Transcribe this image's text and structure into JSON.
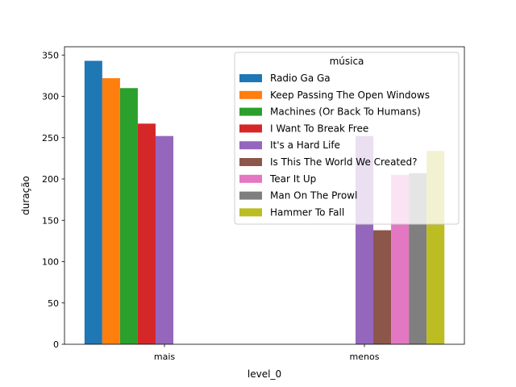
{
  "chart_data": {
    "type": "bar",
    "xlabel": "level_0",
    "ylabel": "duração",
    "categories": [
      "mais",
      "menos"
    ],
    "ylim": [
      0,
      360
    ],
    "yticks": [
      0,
      50,
      100,
      150,
      200,
      250,
      300,
      350
    ],
    "legend": {
      "title": "música",
      "placement": "top-right",
      "entries": [
        "Radio Ga Ga",
        "Keep Passing The Open Windows",
        "Machines (Or Back To Humans)",
        "I Want To Break Free",
        "It's a Hard Life",
        "Is This The World We Created?",
        "Tear It Up",
        "Man On The Prowl",
        "Hammer To Fall"
      ]
    },
    "series": [
      {
        "name": "Radio Ga Ga",
        "color": "#1f77b4",
        "values": [
          343,
          null
        ]
      },
      {
        "name": "Keep Passing The Open Windows",
        "color": "#ff7f0e",
        "values": [
          322,
          null
        ]
      },
      {
        "name": "Machines (Or Back To Humans)",
        "color": "#2ca02c",
        "values": [
          310,
          null
        ]
      },
      {
        "name": "I Want To Break Free",
        "color": "#d62728",
        "values": [
          267,
          null
        ]
      },
      {
        "name": "It's a Hard Life",
        "color": "#9467bd",
        "values": [
          252,
          252
        ]
      },
      {
        "name": "Is This The World We Created?",
        "color": "#8c564b",
        "values": [
          null,
          138
        ]
      },
      {
        "name": "Tear It Up",
        "color": "#e377c2",
        "values": [
          null,
          205
        ]
      },
      {
        "name": "Man On The Prowl",
        "color": "#7f7f7f",
        "values": [
          null,
          207
        ]
      },
      {
        "name": "Hammer To Fall",
        "color": "#bcbd22",
        "values": [
          null,
          234
        ]
      }
    ]
  }
}
